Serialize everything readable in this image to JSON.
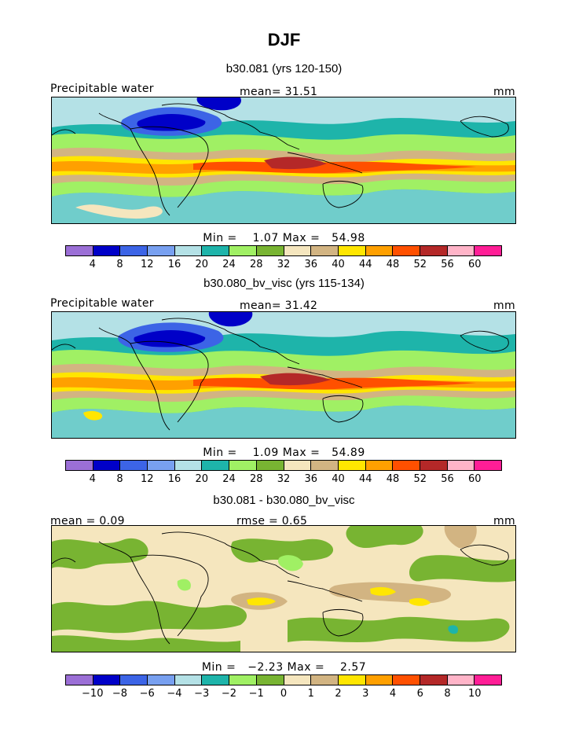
{
  "title": "DJF",
  "units_label": "mm",
  "panels": [
    {
      "subtitle": "b30.081 (yrs 120-150)",
      "left_label": "Precipitable water",
      "center_label": "mean=   31.51",
      "right_label": "mm",
      "minmax": "Min =    1.07 Max =   54.98",
      "colorbar": [
        "4",
        "8",
        "12",
        "16",
        "20",
        "24",
        "28",
        "32",
        "36",
        "40",
        "44",
        "48",
        "52",
        "56",
        "60"
      ]
    },
    {
      "subtitle": "b30.080_bv_visc (yrs 115-134)",
      "left_label": "Precipitable water",
      "center_label": "mean=   31.42",
      "right_label": "mm",
      "minmax": "Min =    1.09 Max =   54.89",
      "colorbar": [
        "4",
        "8",
        "12",
        "16",
        "20",
        "24",
        "28",
        "32",
        "36",
        "40",
        "44",
        "48",
        "52",
        "56",
        "60"
      ]
    },
    {
      "subtitle": "b30.081 - b30.080_bv_visc",
      "left_label": "mean =    0.09",
      "center_label": "rmse =    0.65",
      "right_label": "mm",
      "minmax": "Min =   −2.23 Max =    2.57",
      "colorbar": [
        "−10",
        "−8",
        "−6",
        "−4",
        "−3",
        "−2",
        "−1",
        "0",
        "1",
        "2",
        "3",
        "4",
        "6",
        "8",
        "10"
      ]
    }
  ],
  "colors": [
    "#9b6fd6",
    "#0000c8",
    "#3c64e6",
    "#78a0f0",
    "#b4e1e6",
    "#1eb4aa",
    "#a0f064",
    "#78b432",
    "#f5e6be",
    "#d2b482",
    "#ffe600",
    "#ffa000",
    "#ff5000",
    "#b42828",
    "#ffb4c8",
    "#ff1e96"
  ]
}
